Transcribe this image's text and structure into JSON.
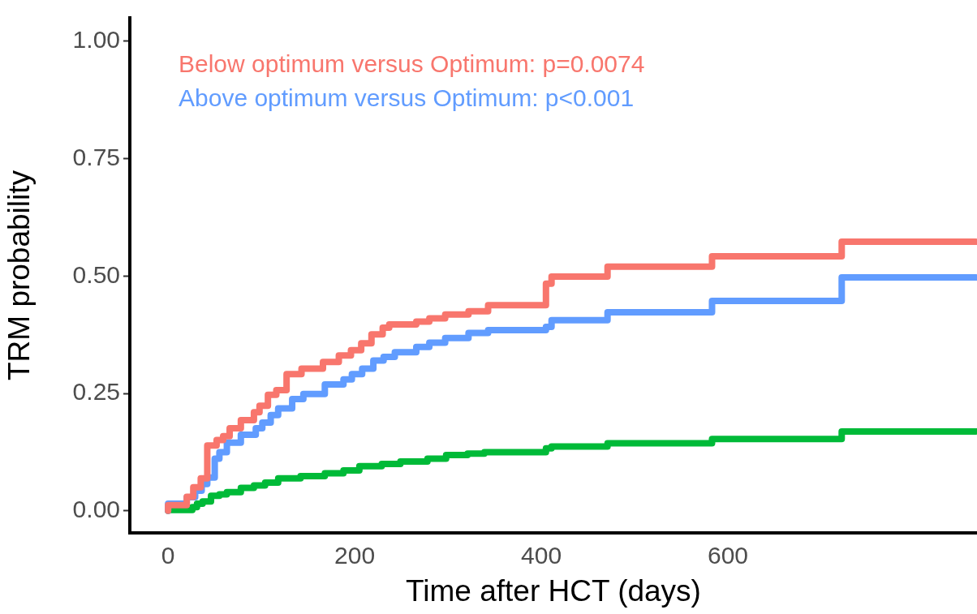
{
  "chart_data": {
    "type": "step",
    "xlabel": "Time after HCT (days)",
    "ylabel": "TRM probability",
    "annotations": [
      "Below optimum versus Optimum: p=0.0074",
      "Above optimum versus Optimum: p<0.001"
    ],
    "xlim": [
      -41,
      867
    ],
    "xticks": [
      0,
      200,
      400,
      600
    ],
    "ylim": [
      -0.047,
      1.05
    ],
    "yticks": [
      {
        "value": 0,
        "label": "0.00"
      },
      {
        "value": 0.25,
        "label": "0.25"
      },
      {
        "value": 0.5,
        "label": "0.50"
      },
      {
        "value": 0.75,
        "label": "0.75"
      },
      {
        "value": 1,
        "label": "1.00"
      }
    ],
    "grid": false,
    "legend": false,
    "marker": "none",
    "line_style": "solid",
    "series": [
      {
        "color": "#f8766d",
        "x": [
          0,
          20,
          27,
          35,
          42,
          52,
          59,
          66,
          78,
          92,
          98,
          107,
          116,
          127,
          143,
          166,
          183,
          196,
          207,
          218,
          230,
          237,
          266,
          280,
          297,
          322,
          343,
          405,
          411,
          471,
          583,
          722,
          866
        ],
        "values": [
          0,
          0.012,
          0.03,
          0.05,
          0.069,
          0.139,
          0.151,
          0.159,
          0.176,
          0.193,
          0.21,
          0.224,
          0.247,
          0.257,
          0.291,
          0.303,
          0.317,
          0.331,
          0.342,
          0.357,
          0.376,
          0.39,
          0.397,
          0.403,
          0.41,
          0.418,
          0.425,
          0.438,
          0.484,
          0.499,
          0.52,
          0.542,
          0.573
        ]
      },
      {
        "color": "#619cff",
        "x": [
          0,
          20,
          29,
          36,
          42,
          50,
          55,
          63,
          78,
          94,
          101,
          110,
          118,
          133,
          145,
          168,
          188,
          197,
          208,
          220,
          231,
          243,
          266,
          280,
          297,
          322,
          343,
          405,
          411,
          471,
          583,
          722,
          866
        ],
        "values": [
          0,
          0.015,
          0.029,
          0.043,
          0.057,
          0.071,
          0.111,
          0.125,
          0.145,
          0.162,
          0.176,
          0.188,
          0.204,
          0.218,
          0.238,
          0.249,
          0.269,
          0.28,
          0.291,
          0.303,
          0.32,
          0.328,
          0.338,
          0.349,
          0.358,
          0.368,
          0.379,
          0.385,
          0.392,
          0.406,
          0.423,
          0.447,
          0.497
        ]
      },
      {
        "color": "#00ba38",
        "x": [
          0,
          26,
          31,
          37,
          46,
          55,
          63,
          78,
          92,
          104,
          118,
          142,
          168,
          188,
          205,
          229,
          249,
          278,
          298,
          321,
          339,
          405,
          411,
          471,
          583,
          722,
          866
        ],
        "values": [
          0,
          0.002,
          0.008,
          0.015,
          0.02,
          0.032,
          0.035,
          0.04,
          0.049,
          0.054,
          0.06,
          0.069,
          0.074,
          0.08,
          0.086,
          0.095,
          0.1,
          0.105,
          0.111,
          0.119,
          0.122,
          0.125,
          0.133,
          0.137,
          0.144,
          0.153,
          0.169
        ]
      }
    ]
  }
}
